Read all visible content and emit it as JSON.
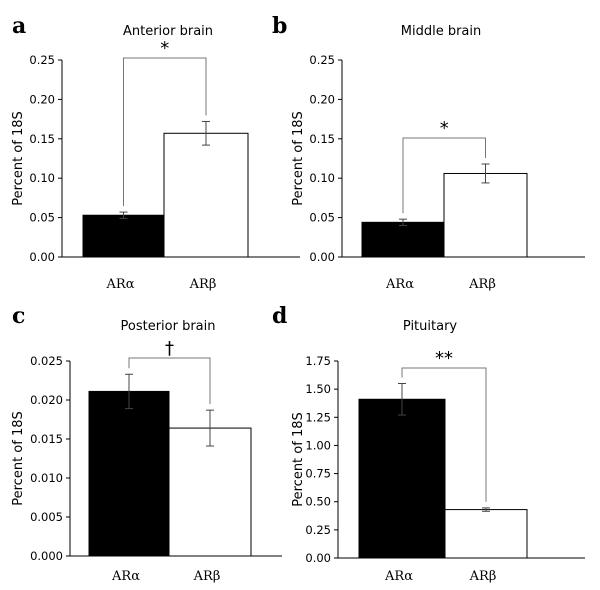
{
  "chart_data": [
    {
      "type": "bar",
      "panel": "a",
      "title": "Anterior brain",
      "ylabel": "Percent of 18S",
      "categories": [
        "ARα",
        "ARβ"
      ],
      "values": [
        0.053,
        0.157
      ],
      "errors": [
        0.004,
        0.015
      ],
      "colors": [
        "#000000",
        "#ffffff"
      ],
      "ylim": [
        0,
        0.25
      ],
      "yticks": [
        "0.00",
        "0.05",
        "0.10",
        "0.15",
        "0.20",
        "0.25"
      ],
      "significance": "*"
    },
    {
      "type": "bar",
      "panel": "b",
      "title": "Middle brain",
      "ylabel": "Percent of 18S",
      "categories": [
        "ARα",
        "ARβ"
      ],
      "values": [
        0.044,
        0.106
      ],
      "errors": [
        0.004,
        0.012
      ],
      "colors": [
        "#000000",
        "#ffffff"
      ],
      "ylim": [
        0,
        0.25
      ],
      "yticks": [
        "0.00",
        "0.05",
        "0.10",
        "0.15",
        "0.20",
        "0.25"
      ],
      "significance": "*"
    },
    {
      "type": "bar",
      "panel": "c",
      "title": "Posterior brain",
      "ylabel": "Percent of 18S",
      "categories": [
        "ARα",
        "ARβ"
      ],
      "values": [
        0.0211,
        0.0164
      ],
      "errors": [
        0.0022,
        0.0023
      ],
      "colors": [
        "#000000",
        "#ffffff"
      ],
      "ylim": [
        0,
        0.025
      ],
      "yticks": [
        "0.000",
        "0.005",
        "0.010",
        "0.015",
        "0.020",
        "0.025"
      ],
      "significance": "†"
    },
    {
      "type": "bar",
      "panel": "d",
      "title": "Pituitary",
      "ylabel": "Percent of 18S",
      "categories": [
        "ARα",
        "ARβ"
      ],
      "values": [
        1.41,
        0.43
      ],
      "errors": [
        0.14,
        0.015
      ],
      "colors": [
        "#000000",
        "#ffffff"
      ],
      "ylim": [
        0,
        1.75
      ],
      "yticks": [
        "0.00",
        "0.25",
        "0.50",
        "0.75",
        "1.00",
        "1.25",
        "1.50",
        "1.75"
      ],
      "significance": "**"
    }
  ]
}
